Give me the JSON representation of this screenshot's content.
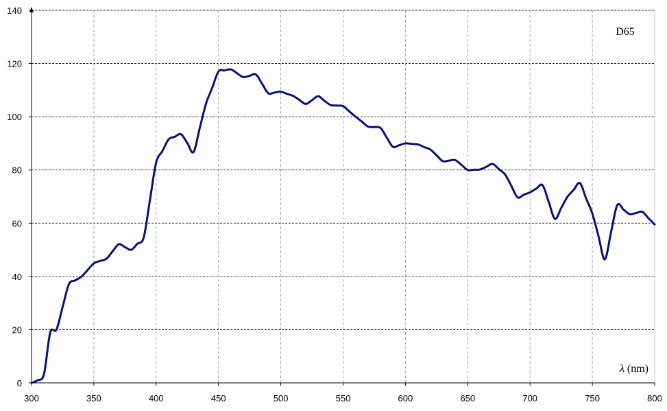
{
  "chart_data": {
    "type": "line",
    "title": "D65",
    "xlabel": "λ (nm)",
    "ylabel": "",
    "xlim": [
      300,
      800
    ],
    "ylim": [
      0,
      140
    ],
    "x_ticks": [
      300,
      350,
      400,
      450,
      500,
      550,
      600,
      650,
      700,
      750,
      800
    ],
    "y_ticks": [
      0,
      20,
      40,
      60,
      80,
      100,
      120,
      140
    ],
    "grid": {
      "vertical": "dashed",
      "horizontal": "dashed"
    },
    "legend_placement": "top-right",
    "colors": {
      "line": "#0b0d78",
      "grid_vertical": "#909090",
      "grid_horizontal": "#000000",
      "axis": "#000000",
      "border": "#c8c8c8"
    },
    "series": [
      {
        "name": "D65",
        "x": [
          300,
          305,
          310,
          315,
          320,
          325,
          330,
          335,
          340,
          345,
          350,
          355,
          360,
          365,
          370,
          375,
          380,
          385,
          390,
          395,
          400,
          405,
          410,
          415,
          420,
          425,
          430,
          435,
          440,
          445,
          450,
          455,
          460,
          465,
          470,
          475,
          480,
          485,
          490,
          495,
          500,
          505,
          510,
          515,
          520,
          525,
          530,
          535,
          540,
          545,
          550,
          555,
          560,
          565,
          570,
          575,
          580,
          585,
          590,
          595,
          600,
          605,
          610,
          615,
          620,
          625,
          630,
          635,
          640,
          645,
          650,
          655,
          660,
          665,
          670,
          675,
          680,
          685,
          690,
          695,
          700,
          705,
          710,
          715,
          720,
          725,
          730,
          735,
          740,
          745,
          750,
          755,
          760,
          765,
          770,
          775,
          780,
          785,
          790,
          795,
          800
        ],
        "values": [
          0.0,
          1.0,
          3.3,
          18.9,
          20.0,
          28.6,
          37.1,
          38.5,
          39.9,
          42.4,
          44.9,
          45.8,
          46.6,
          49.4,
          52.1,
          51.0,
          50.0,
          52.3,
          54.6,
          68.7,
          82.8,
          87.1,
          91.5,
          92.5,
          93.4,
          90.1,
          86.7,
          95.8,
          104.9,
          110.9,
          117.0,
          117.4,
          117.8,
          116.3,
          114.9,
          115.4,
          115.9,
          112.4,
          108.8,
          109.1,
          109.4,
          108.6,
          107.8,
          106.3,
          104.8,
          106.2,
          107.7,
          106.0,
          104.4,
          104.2,
          104.0,
          102.0,
          100.0,
          98.2,
          96.3,
          96.1,
          95.8,
          92.2,
          88.7,
          89.3,
          90.0,
          89.8,
          89.6,
          88.6,
          87.7,
          85.5,
          83.3,
          83.5,
          83.7,
          81.9,
          80.0,
          80.1,
          80.2,
          81.2,
          82.3,
          80.3,
          78.3,
          74.0,
          69.7,
          70.7,
          71.6,
          73.0,
          74.3,
          68.0,
          61.6,
          65.7,
          69.9,
          72.5,
          75.1,
          69.3,
          63.6,
          55.0,
          46.4,
          56.6,
          66.8,
          65.1,
          63.4,
          63.8,
          64.3,
          61.9,
          59.5
        ]
      }
    ]
  }
}
